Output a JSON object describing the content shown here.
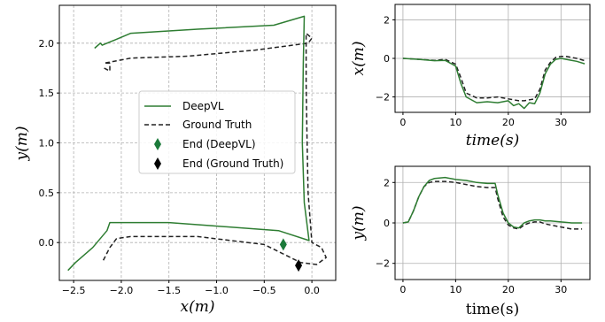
{
  "colors": {
    "deepvl": "#2e7d32",
    "ground_truth": "#222222",
    "end_deepvl": "#1b7a3a",
    "end_ground_truth": "#000000"
  },
  "chart_data": [
    {
      "type": "line",
      "panel": "trajectory",
      "xlabel": "x(m)",
      "ylabel": "y(m)",
      "xlim": [
        -2.65,
        0.25
      ],
      "ylim": [
        -0.38,
        2.38
      ],
      "xticks": [
        "−2.5",
        "−2.0",
        "−1.5",
        "−1.0",
        "−0.5",
        "0.0"
      ],
      "xtick_values": [
        -2.5,
        -2.0,
        -1.5,
        -1.0,
        -0.5,
        0.0
      ],
      "yticks": [
        "0.0",
        "0.5",
        "1.0",
        "1.5",
        "2.0"
      ],
      "ytick_values": [
        0.0,
        0.5,
        1.0,
        1.5,
        2.0
      ],
      "grid": true,
      "legend_position": "center",
      "series": [
        {
          "name": "DeepVL",
          "x": [
            -2.28,
            -2.22,
            -2.2,
            -1.9,
            -1.2,
            -0.4,
            -0.08,
            -0.09,
            -0.1,
            -0.08,
            -0.03,
            -0.35,
            -1.5,
            -2.12,
            -2.15,
            -2.3,
            -2.48,
            -2.56
          ],
          "y": [
            1.95,
            2.0,
            1.98,
            2.1,
            2.14,
            2.18,
            2.27,
            1.8,
            1.0,
            0.4,
            0.02,
            0.12,
            0.2,
            0.2,
            0.12,
            -0.05,
            -0.2,
            -0.28
          ]
        },
        {
          "name": "Ground Truth",
          "x": [
            -2.18,
            -2.12,
            -2.12,
            -2.18,
            -1.9,
            -1.3,
            -0.6,
            -0.04,
            0.0,
            -0.06,
            -0.06,
            -0.05,
            -0.04,
            0.0,
            0.1,
            0.15,
            0.05,
            -0.12,
            -0.5,
            -1.2,
            -1.9,
            -2.05,
            -2.12,
            -2.2
          ],
          "y": [
            1.75,
            1.72,
            1.8,
            1.8,
            1.85,
            1.87,
            1.93,
            2.0,
            2.05,
            2.1,
            1.6,
            1.0,
            0.5,
            0.0,
            -0.05,
            -0.15,
            -0.22,
            -0.2,
            -0.02,
            0.06,
            0.06,
            0.04,
            -0.05,
            -0.2
          ]
        }
      ],
      "markers": [
        {
          "name": "End (DeepVL)",
          "x": -0.3,
          "y": -0.02
        },
        {
          "name": "End (Ground Truth)",
          "x": -0.14,
          "y": -0.23
        }
      ]
    },
    {
      "type": "line",
      "panel": "x-vs-time",
      "xlabel": "time(s)",
      "ylabel": "x(m)",
      "xlim": [
        -1.5,
        35.5
      ],
      "ylim": [
        -2.8,
        2.8
      ],
      "xticks": [
        "0",
        "10",
        "20",
        "30"
      ],
      "xtick_values": [
        0,
        10,
        20,
        30
      ],
      "yticks": [
        "−2",
        "0",
        "2"
      ],
      "ytick_values": [
        -2,
        0,
        2
      ],
      "grid": true,
      "series": [
        {
          "name": "DeepVL",
          "x": [
            0,
            3,
            6,
            8,
            10,
            11,
            12,
            14,
            16,
            18,
            20,
            21,
            22,
            23,
            24,
            25,
            26,
            27,
            28,
            29,
            30,
            31,
            32,
            33,
            34.5
          ],
          "y": [
            0.0,
            -0.05,
            -0.12,
            -0.1,
            -0.4,
            -1.3,
            -2.0,
            -2.3,
            -2.25,
            -2.3,
            -2.2,
            -2.45,
            -2.35,
            -2.6,
            -2.3,
            -2.35,
            -1.8,
            -0.8,
            -0.3,
            -0.05,
            0.0,
            -0.05,
            -0.1,
            -0.15,
            -0.28
          ]
        },
        {
          "name": "Ground Truth",
          "x": [
            0,
            3,
            6,
            8,
            10,
            11,
            12,
            14,
            16,
            18,
            20,
            21,
            22,
            23,
            24,
            25,
            26,
            27,
            28,
            29,
            30,
            31,
            32,
            33,
            34.5
          ],
          "y": [
            0.0,
            -0.05,
            -0.1,
            -0.05,
            -0.3,
            -1.0,
            -1.8,
            -2.05,
            -2.05,
            -2.0,
            -2.1,
            -2.15,
            -2.2,
            -2.2,
            -2.15,
            -2.1,
            -1.6,
            -0.6,
            -0.2,
            0.05,
            0.1,
            0.1,
            0.05,
            0.0,
            -0.12
          ]
        }
      ]
    },
    {
      "type": "line",
      "panel": "y-vs-time",
      "xlabel": "time(s)",
      "ylabel": "y(m)",
      "xlim": [
        -1.5,
        35.5
      ],
      "ylim": [
        -2.8,
        2.8
      ],
      "xticks": [
        "0",
        "10",
        "20",
        "30"
      ],
      "xtick_values": [
        0,
        10,
        20,
        30
      ],
      "yticks": [
        "−2",
        "0",
        "2"
      ],
      "ytick_values": [
        -2,
        0,
        2
      ],
      "grid": true,
      "series": [
        {
          "name": "DeepVL",
          "x": [
            0,
            1,
            2,
            3,
            4,
            5,
            6,
            8,
            10,
            12,
            14,
            16,
            17.5,
            18,
            19,
            20,
            21,
            22,
            23,
            24,
            25,
            26,
            27,
            28,
            30,
            32,
            34
          ],
          "y": [
            0.0,
            0.05,
            0.6,
            1.3,
            1.8,
            2.1,
            2.2,
            2.25,
            2.15,
            2.1,
            2.0,
            1.95,
            1.95,
            1.4,
            0.5,
            0.0,
            -0.2,
            -0.25,
            0.0,
            0.1,
            0.15,
            0.15,
            0.1,
            0.1,
            0.05,
            0.0,
            0.0
          ]
        },
        {
          "name": "Ground Truth",
          "x": [
            0,
            1,
            2,
            3,
            4,
            5,
            6,
            8,
            10,
            12,
            14,
            16,
            17.5,
            18,
            19,
            20,
            21,
            22,
            23,
            24,
            25,
            26,
            27,
            28,
            30,
            32,
            34
          ],
          "y": [
            0.0,
            0.05,
            0.6,
            1.3,
            1.8,
            2.0,
            2.05,
            2.05,
            2.0,
            1.9,
            1.8,
            1.75,
            1.75,
            1.2,
            0.3,
            -0.1,
            -0.25,
            -0.3,
            -0.1,
            0.0,
            0.05,
            0.05,
            -0.05,
            -0.1,
            -0.2,
            -0.3,
            -0.3
          ]
        }
      ]
    }
  ]
}
